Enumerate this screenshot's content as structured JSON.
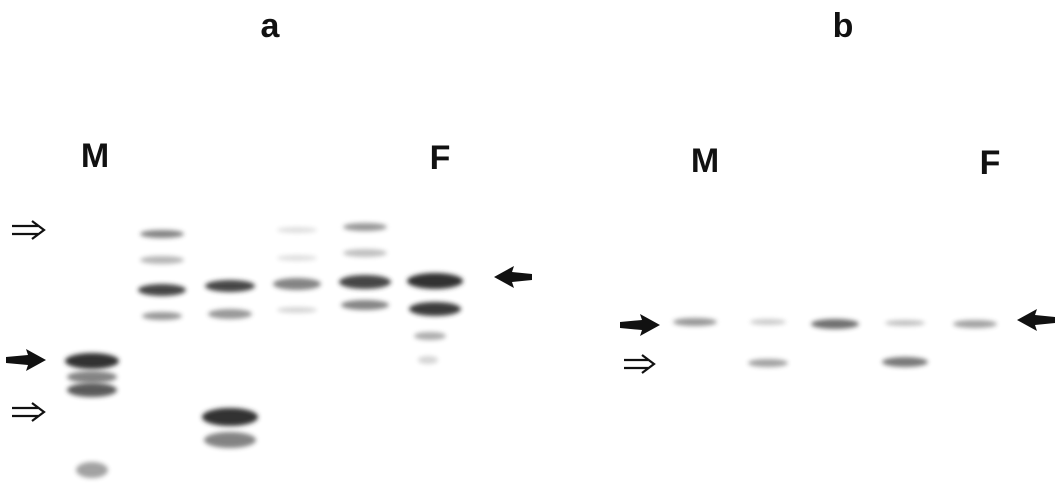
{
  "panels": [
    {
      "label": "a",
      "left_lane": "M",
      "right_lane": "F"
    },
    {
      "label": "b",
      "left_lane": "M",
      "right_lane": "F"
    }
  ]
}
